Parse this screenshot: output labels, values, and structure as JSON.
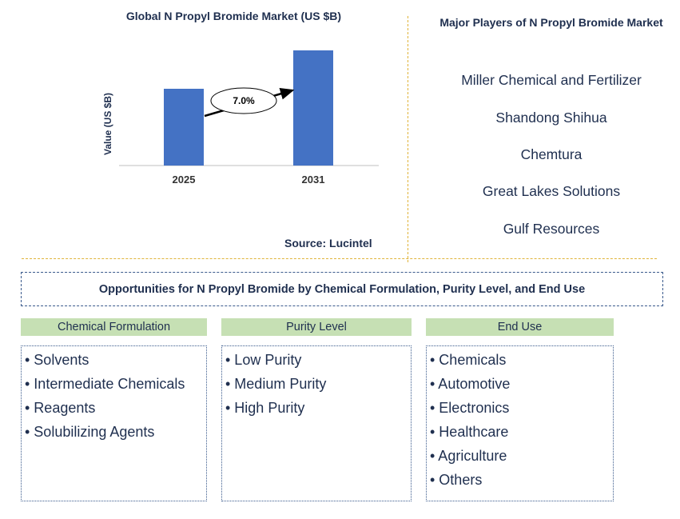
{
  "chart_data": {
    "type": "bar",
    "title": "Global N Propyl Bromide Market (US $B)",
    "ylabel": "Value (US $B)",
    "categories": [
      "2025",
      "2031"
    ],
    "values": [
      0.64,
      0.96
    ],
    "ylim": [
      0,
      1
    ],
    "annotation": "7.0%",
    "color": "#4472c4",
    "grid": false
  },
  "source": "Source: Lucintel",
  "players": {
    "title": "Major Players of N Propyl Bromide Market",
    "items": [
      "Miller Chemical  and  Fertilizer",
      "Shandong Shihua",
      "Chemtura",
      "Great Lakes Solutions",
      "Gulf Resources"
    ]
  },
  "opportunities": {
    "title": "Opportunities for N Propyl Bromide by Chemical Formulation, Purity Level, and End Use",
    "categories": [
      {
        "header": "Chemical Formulation",
        "items": [
          "• Solvents",
          "• Intermediate Chemicals",
          "• Reagents",
          "• Solubilizing Agents"
        ]
      },
      {
        "header": "Purity Level",
        "items": [
          "• Low Purity",
          "• Medium Purity",
          "• High Purity"
        ]
      },
      {
        "header": "End Use",
        "items": [
          "• Chemicals",
          "• Automotive",
          "• Electronics",
          "• Healthcare",
          "• Agriculture",
          "• Others"
        ]
      }
    ],
    "header_color": "#c6e0b4"
  }
}
